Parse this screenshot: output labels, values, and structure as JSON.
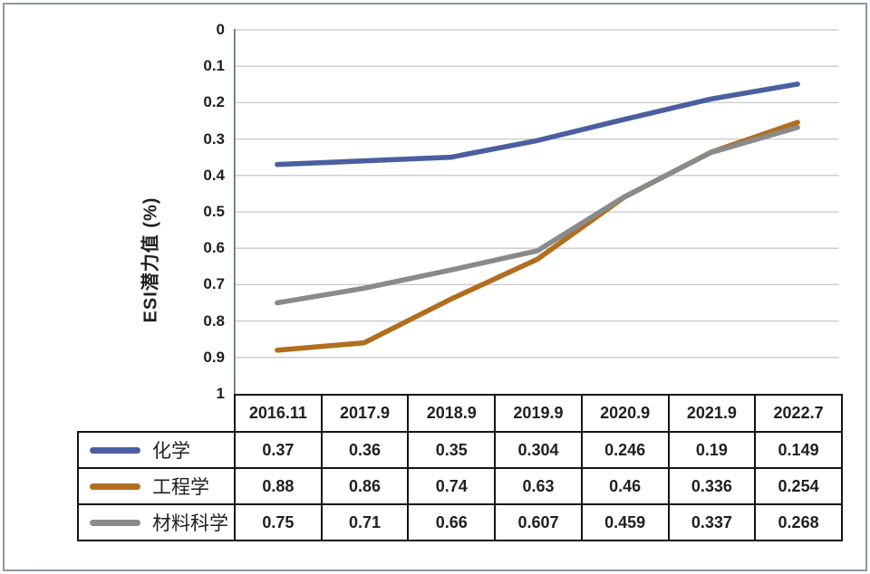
{
  "figure": {
    "y_axis_label": "ESI潜力值 (%)",
    "y_tick_labels": [
      "0",
      "0.1",
      "0.2",
      "0.3",
      "0.4",
      "0.5",
      "0.6",
      "0.7",
      "0.8",
      "0.9",
      "1"
    ]
  },
  "chart_data": {
    "type": "line",
    "title": "",
    "xlabel": "",
    "ylabel": "ESI潜力值 (%)",
    "ylim": [
      0,
      1
    ],
    "y_axis_inverted": true,
    "y_tick_step": 0.1,
    "grid": true,
    "legend_position": "data-table-left-column",
    "categories": [
      "2016.11",
      "2017.9",
      "2018.9",
      "2019.9",
      "2020.9",
      "2021.9",
      "2022.7"
    ],
    "series": [
      {
        "name": "化学",
        "color": "#4b5fa0",
        "values": [
          0.37,
          0.36,
          0.35,
          0.304,
          0.246,
          0.19,
          0.149
        ]
      },
      {
        "name": "工程学",
        "color": "#b06e1e",
        "values": [
          0.88,
          0.86,
          0.74,
          0.63,
          0.46,
          0.336,
          0.254
        ]
      },
      {
        "name": "材料科学",
        "color": "#8a8a8a",
        "values": [
          0.75,
          0.71,
          0.66,
          0.607,
          0.459,
          0.337,
          0.268
        ]
      }
    ]
  },
  "colors": {
    "grid_line": "#c8c8c8",
    "axis_line": "#5a6874",
    "table_border": "#141414",
    "text": "#1f1f1f",
    "outer_frame": "#8d97a4",
    "background": "#ffffff"
  }
}
